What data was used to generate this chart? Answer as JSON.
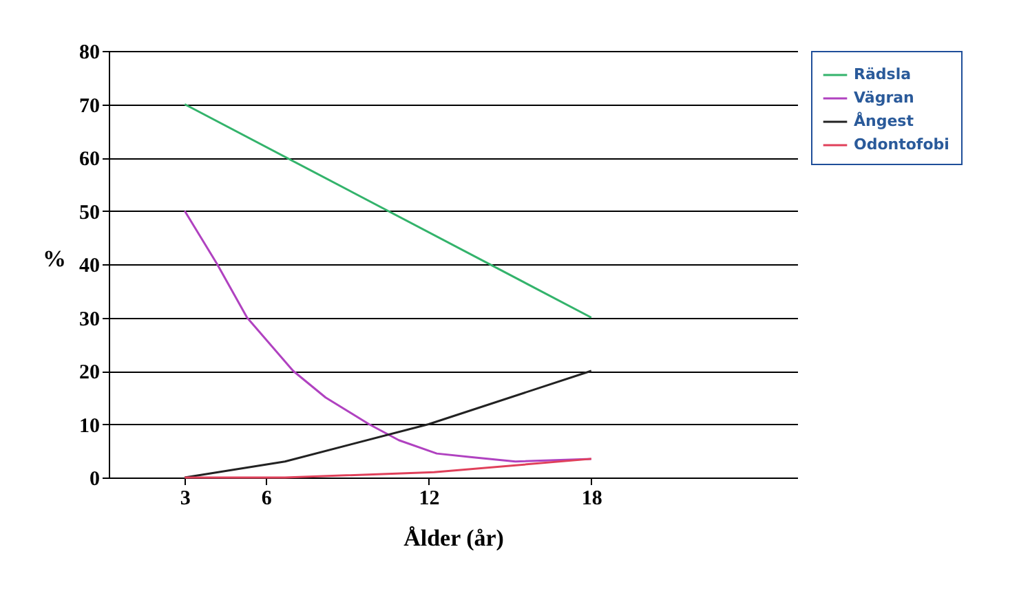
{
  "chart_data": {
    "type": "line",
    "xlabel": "Ålder (år)",
    "ylabel": "%",
    "xlim": [
      0.2,
      25.6
    ],
    "xticks": [
      3,
      6,
      12,
      18
    ],
    "ylim": [
      0,
      80
    ],
    "yticks": [
      0,
      10,
      20,
      30,
      40,
      50,
      60,
      70,
      80
    ],
    "grid": "y",
    "legend": "right",
    "marker": "none",
    "line_style": "solid",
    "series": [
      {
        "name": "Rädsla",
        "color": "#33b36b",
        "x": [
          3,
          18
        ],
        "values": [
          70,
          30
        ]
      },
      {
        "name": "Vägran",
        "color": "#b042c0",
        "x": [
          3,
          4.2,
          5.3,
          7,
          8.2,
          9.8,
          10.9,
          12.3,
          13.6,
          15.2,
          18
        ],
        "values": [
          50,
          40,
          30,
          20,
          15,
          10,
          7,
          4.5,
          3.8,
          3,
          3.5
        ]
      },
      {
        "name": "Ångest",
        "color": "#222222",
        "x": [
          3,
          6.7,
          12,
          18
        ],
        "values": [
          0,
          3,
          10,
          20
        ]
      },
      {
        "name": "Odontofobi",
        "color": "#e0405a",
        "x": [
          3,
          6.7,
          12.2,
          18
        ],
        "values": [
          0,
          0,
          1,
          3.5
        ]
      }
    ]
  }
}
